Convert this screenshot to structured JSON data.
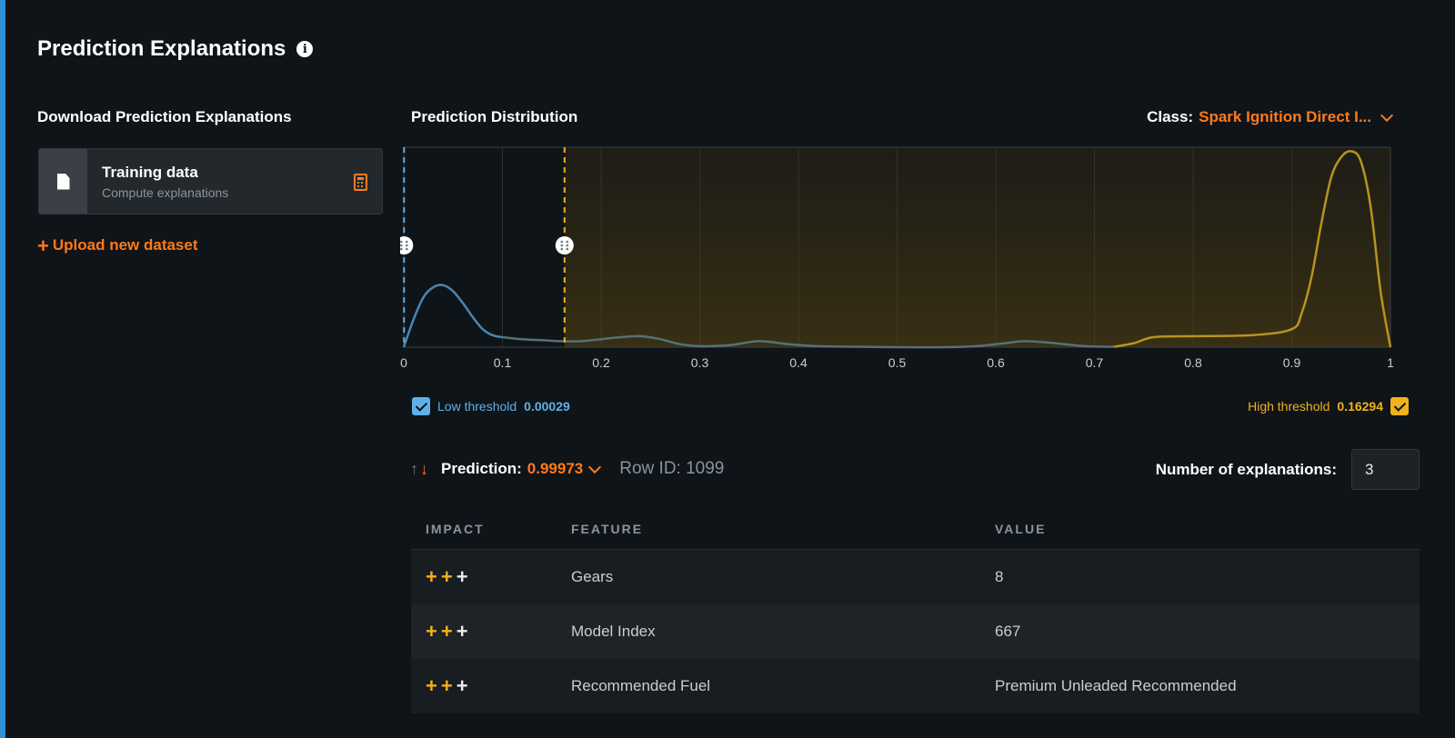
{
  "page": {
    "title": "Prediction Explanations",
    "info_icon": "info-icon"
  },
  "download": {
    "heading": "Download Prediction Explanations",
    "card": {
      "title": "Training data",
      "subtitle": "Compute explanations",
      "icon": "file-icon",
      "action_icon": "calculator-icon"
    },
    "upload_label": "Upload new dataset"
  },
  "distribution": {
    "heading": "Prediction Distribution",
    "class_label": "Class:",
    "class_value": "Spark Ignition Direct I..."
  },
  "thresholds": {
    "low": {
      "label": "Low threshold",
      "value": "0.00029",
      "checked": true,
      "color": "#5fb0ea"
    },
    "high": {
      "label": "High threshold",
      "value": "0.16294",
      "checked": true,
      "color": "#f0b21a"
    }
  },
  "prediction": {
    "label": "Prediction:",
    "value": "0.99973",
    "row_id": "Row ID: 1099"
  },
  "explanations": {
    "label": "Number of explanations:",
    "value": "3"
  },
  "table": {
    "headers": [
      "IMPACT",
      "FEATURE",
      "VALUE"
    ],
    "rows": [
      {
        "impact": "+++",
        "feature": "Gears",
        "value": "8"
      },
      {
        "impact": "+++",
        "feature": "Model Index",
        "value": "667"
      },
      {
        "impact": "+++",
        "feature": "Recommended Fuel",
        "value": "Premium Unleaded Recommended"
      }
    ]
  },
  "chart_data": {
    "type": "area",
    "title": "Prediction Distribution",
    "xlabel": "",
    "ylabel": "",
    "xlim": [
      0,
      1
    ],
    "ylim": [
      0,
      1
    ],
    "x_ticks": [
      "0",
      "0.1",
      "0.2",
      "0.3",
      "0.4",
      "0.5",
      "0.6",
      "0.7",
      "0.8",
      "0.9",
      "1"
    ],
    "grid": true,
    "series": [
      {
        "x": [
          0,
          0.01,
          0.02,
          0.03,
          0.04,
          0.05,
          0.06,
          0.07,
          0.08,
          0.09,
          0.1,
          0.12,
          0.14,
          0.16,
          0.18,
          0.2,
          0.22,
          0.24,
          0.26,
          0.28,
          0.3,
          0.33,
          0.36,
          0.39,
          0.42,
          0.46,
          0.5,
          0.55,
          0.58,
          0.61,
          0.63,
          0.66,
          0.69,
          0.72,
          0.74,
          0.76,
          0.8,
          0.86,
          0.9,
          0.91,
          0.92,
          0.93,
          0.94,
          0.95,
          0.96,
          0.97,
          0.98,
          0.99,
          1.0
        ],
        "y": [
          0.0,
          0.14,
          0.25,
          0.3,
          0.31,
          0.28,
          0.22,
          0.15,
          0.09,
          0.06,
          0.05,
          0.04,
          0.035,
          0.03,
          0.03,
          0.04,
          0.05,
          0.055,
          0.04,
          0.015,
          0.005,
          0.01,
          0.03,
          0.015,
          0.005,
          0.002,
          0.0,
          0.0,
          0.005,
          0.02,
          0.03,
          0.02,
          0.005,
          0.002,
          0.02,
          0.05,
          0.055,
          0.06,
          0.09,
          0.17,
          0.35,
          0.62,
          0.85,
          0.95,
          0.98,
          0.93,
          0.7,
          0.28,
          0.0
        ],
        "color": "#f0b21a"
      }
    ],
    "low_threshold": 0.00029,
    "high_threshold": 0.16294
  }
}
